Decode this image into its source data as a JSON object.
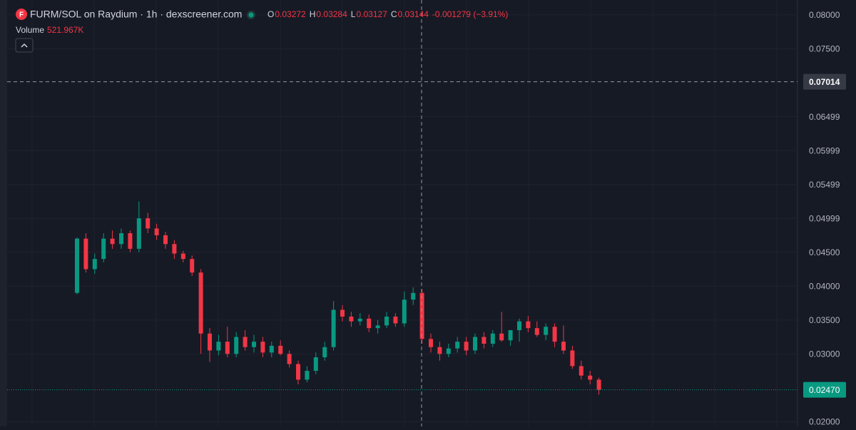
{
  "chart_data": {
    "type": "candlestick",
    "title": "FURM/SOL on Raydium · 1h · dexscreener.com",
    "logo": "F",
    "ohlc_labels": [
      "O",
      "H",
      "L",
      "C"
    ],
    "ohlc_values": [
      0.03272,
      0.03284,
      0.03127,
      0.03144
    ],
    "change": "-0.001279 (−3.91%)",
    "volume_label": "Volume",
    "volume_value": "521.967K",
    "ylim": [
      0.0193,
      0.0822
    ],
    "yticks": [
      {
        "value": 0.08,
        "label": "0.08000"
      },
      {
        "value": 0.075,
        "label": "0.07500"
      },
      0.06499,
      0.05999,
      0.05499,
      0.04999,
      {
        "value": 0.045,
        "label": "0.04500"
      },
      {
        "value": 0.04,
        "label": "0.04000"
      },
      {
        "value": 0.035,
        "label": "0.03500"
      },
      {
        "value": 0.03,
        "label": "0.03000"
      },
      {
        "value": 0.02,
        "label": "0.02000"
      }
    ],
    "crosshair_price": 0.07014,
    "last_price": {
      "value": 0.0247,
      "label": "0.02470"
    },
    "up_color": "#089981",
    "down_color": "#f23645",
    "grid": true,
    "open": [
      0.039,
      0.047,
      0.0425,
      0.044,
      0.047,
      0.0462,
      0.0478,
      0.0455,
      0.05,
      0.0485,
      0.0475,
      0.0462,
      0.0448,
      0.044,
      0.042,
      0.033,
      0.0305,
      0.0318,
      0.03,
      0.0325,
      0.031,
      0.0318,
      0.0302,
      0.0312,
      0.03,
      0.0285,
      0.0262,
      0.0275,
      0.0295,
      0.031,
      0.0365,
      0.0355,
      0.0348,
      0.0352,
      0.0338,
      0.0342,
      0.0355,
      0.0345,
      0.038,
      0.039,
      0.0322,
      0.031,
      0.03,
      0.0308,
      0.0318,
      0.0305,
      0.0325,
      0.0315,
      0.033,
      0.032,
      0.0335,
      0.0348,
      0.0338,
      0.0328,
      0.034,
      0.0318,
      0.0305,
      0.0282,
      0.0268,
      0.0262
    ],
    "high": [
      0.0472,
      0.0478,
      0.0448,
      0.0478,
      0.0482,
      0.0485,
      0.0482,
      0.0525,
      0.0508,
      0.0492,
      0.048,
      0.0468,
      0.0452,
      0.0445,
      0.0425,
      0.0338,
      0.0328,
      0.034,
      0.0332,
      0.0335,
      0.0328,
      0.0325,
      0.0318,
      0.032,
      0.0305,
      0.029,
      0.0282,
      0.0302,
      0.0318,
      0.0378,
      0.0372,
      0.0362,
      0.036,
      0.0358,
      0.035,
      0.0362,
      0.036,
      0.0392,
      0.0398,
      0.0395,
      0.033,
      0.0318,
      0.0315,
      0.0325,
      0.0325,
      0.033,
      0.0332,
      0.0335,
      0.0362,
      0.0335,
      0.0352,
      0.0356,
      0.0348,
      0.0345,
      0.0345,
      0.0342,
      0.0312,
      0.029,
      0.0275,
      0.0265
    ],
    "low": [
      0.0388,
      0.042,
      0.0418,
      0.0435,
      0.0455,
      0.0455,
      0.045,
      0.045,
      0.0478,
      0.0468,
      0.0455,
      0.044,
      0.0435,
      0.0415,
      0.03,
      0.0288,
      0.0298,
      0.0295,
      0.0295,
      0.0305,
      0.0302,
      0.0295,
      0.0295,
      0.0298,
      0.028,
      0.0255,
      0.0258,
      0.027,
      0.029,
      0.0305,
      0.0348,
      0.034,
      0.0342,
      0.0332,
      0.033,
      0.0338,
      0.034,
      0.034,
      0.0372,
      0.0315,
      0.0302,
      0.029,
      0.0295,
      0.0302,
      0.0298,
      0.03,
      0.0308,
      0.031,
      0.0318,
      0.0312,
      0.0318,
      0.0332,
      0.0325,
      0.032,
      0.031,
      0.03,
      0.0278,
      0.0262,
      0.0255,
      0.024
    ],
    "close": [
      0.047,
      0.0425,
      0.044,
      0.047,
      0.0462,
      0.0478,
      0.0455,
      0.05,
      0.0485,
      0.0475,
      0.0462,
      0.0448,
      0.044,
      0.042,
      0.033,
      0.0305,
      0.0318,
      0.03,
      0.0325,
      0.031,
      0.0318,
      0.0302,
      0.0312,
      0.03,
      0.0285,
      0.0262,
      0.0275,
      0.0295,
      0.031,
      0.0365,
      0.0355,
      0.0348,
      0.0352,
      0.0338,
      0.0342,
      0.0355,
      0.0345,
      0.038,
      0.039,
      0.0322,
      0.031,
      0.03,
      0.0308,
      0.0318,
      0.0305,
      0.0325,
      0.0315,
      0.033,
      0.032,
      0.0335,
      0.0348,
      0.0338,
      0.0328,
      0.034,
      0.0318,
      0.0305,
      0.0282,
      0.0268,
      0.0262,
      0.0247
    ]
  }
}
